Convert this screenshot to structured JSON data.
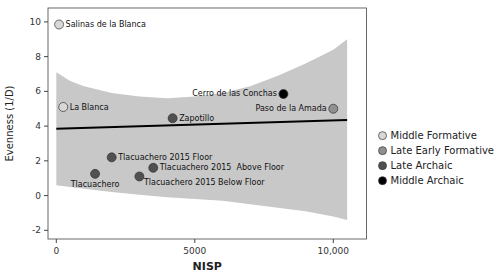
{
  "chart_data": {
    "type": "scatter",
    "x_label": "NISP",
    "y_label": "Evenness (1/D)",
    "xlim": [
      -300,
      11200
    ],
    "ylim": [
      -2.5,
      10.8
    ],
    "xticks": [
      0,
      5000,
      {
        "value": 10000,
        "label": "10,000"
      }
    ],
    "yticks": [
      -2,
      0,
      2,
      4,
      6,
      8,
      10
    ],
    "grid": false,
    "legend": "right",
    "series": [
      {
        "name": "Middle Formative",
        "color": "#d8d8d8",
        "x": [
          100,
          250
        ],
        "values": [
          9.85,
          5.1
        ],
        "labels": [
          "Salinas de la Blanca",
          "La Blanca"
        ]
      },
      {
        "name": "Late Early Formative",
        "color": "#909090",
        "x": [
          10000
        ],
        "values": [
          5.0
        ],
        "labels": [
          "Paso de la Amada"
        ]
      },
      {
        "name": "Late Archaic",
        "color": "#505050",
        "x": [
          4200,
          2000,
          3500,
          3000,
          1400
        ],
        "values": [
          4.45,
          2.2,
          1.6,
          1.1,
          1.25
        ],
        "labels": [
          "Zapotillo",
          "Tlacuachero 2015 Floor",
          "Tlacuachero 2015  Above Floor",
          "Tlacuachero 2015 Below Floor",
          "Tlacuachero"
        ]
      },
      {
        "name": "Middle Archaic",
        "color": "#000000",
        "x": [
          8200
        ],
        "values": [
          5.85
        ],
        "labels": [
          "Cerro de las Conchas"
        ]
      }
    ],
    "trend_line": {
      "x": [
        0,
        10500
      ],
      "y": [
        3.85,
        4.35
      ],
      "color": "#000000"
    },
    "confidence_band": {
      "x": [
        0,
        500,
        1000,
        2000,
        3000,
        4000,
        5000,
        6000,
        7000,
        8000,
        9000,
        10000,
        10500
      ],
      "y_upper": [
        7.1,
        6.6,
        6.3,
        5.9,
        5.7,
        5.6,
        5.7,
        5.9,
        6.3,
        6.9,
        7.6,
        8.4,
        9.0
      ],
      "y_lower": [
        0.6,
        0.5,
        0.4,
        0.2,
        0.05,
        -0.1,
        -0.2,
        -0.3,
        -0.5,
        -0.7,
        -0.9,
        -1.2,
        -1.4
      ],
      "color": "#c8c8c8"
    }
  }
}
